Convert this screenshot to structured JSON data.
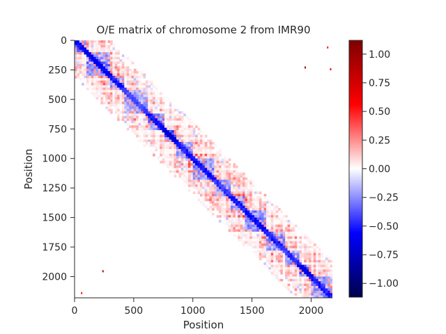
{
  "chart_data": {
    "type": "heatmap",
    "title": "O/E matrix of chromosome 2 from IMR90",
    "xlabel": "Position",
    "ylabel": "Position",
    "xlim": [
      0,
      2180
    ],
    "ylim": [
      2180,
      0
    ],
    "x_ticks": [
      {
        "value": 0,
        "label": "0"
      },
      {
        "value": 500,
        "label": "500"
      },
      {
        "value": 1000,
        "label": "1000"
      },
      {
        "value": 1500,
        "label": "1500"
      },
      {
        "value": 2000,
        "label": "2000"
      }
    ],
    "y_ticks": [
      {
        "value": 0,
        "label": "0"
      },
      {
        "value": 250,
        "label": "250"
      },
      {
        "value": 500,
        "label": "500"
      },
      {
        "value": 750,
        "label": "750"
      },
      {
        "value": 1000,
        "label": "1000"
      },
      {
        "value": 1250,
        "label": "1250"
      },
      {
        "value": 1500,
        "label": "1500"
      },
      {
        "value": 1750,
        "label": "1750"
      },
      {
        "value": 2000,
        "label": "2000"
      }
    ],
    "colorbar": {
      "colormap": "seismic",
      "range": [
        -1.12,
        1.12
      ],
      "ticks": [
        {
          "value": 1.0,
          "label": "1.00"
        },
        {
          "value": 0.75,
          "label": "0.75"
        },
        {
          "value": 0.5,
          "label": "0.50"
        },
        {
          "value": 0.25,
          "label": "0.25"
        },
        {
          "value": 0.0,
          "label": "0.00"
        },
        {
          "value": -0.25,
          "label": "−0.25"
        },
        {
          "value": -0.5,
          "label": "−0.50"
        },
        {
          "value": -0.75,
          "label": "−0.75"
        },
        {
          "value": -1.0,
          "label": "−1.00"
        }
      ]
    },
    "domains": [
      {
        "start": 0,
        "end": 110,
        "strength": -0.55
      },
      {
        "start": 110,
        "end": 300,
        "strength": -0.6
      },
      {
        "start": 300,
        "end": 420,
        "strength": -0.5
      },
      {
        "start": 420,
        "end": 620,
        "strength": -0.4
      },
      {
        "start": 620,
        "end": 760,
        "strength": -0.55
      },
      {
        "start": 760,
        "end": 870,
        "strength": -0.7
      },
      {
        "start": 870,
        "end": 1000,
        "strength": -0.5
      },
      {
        "start": 1000,
        "end": 1180,
        "strength": -0.55
      },
      {
        "start": 1180,
        "end": 1320,
        "strength": -0.45
      },
      {
        "start": 1320,
        "end": 1450,
        "strength": -0.5
      },
      {
        "start": 1450,
        "end": 1620,
        "strength": -0.55
      },
      {
        "start": 1620,
        "end": 1780,
        "strength": -0.5
      },
      {
        "start": 1780,
        "end": 1900,
        "strength": -0.45
      },
      {
        "start": 1900,
        "end": 2000,
        "strength": -0.65
      },
      {
        "start": 2000,
        "end": 2180,
        "strength": -0.5
      }
    ],
    "band_width": 300,
    "off_diagonal_value_range": [
      0.05,
      0.45
    ],
    "sparse_points": [
      {
        "x": 1950,
        "y": 230,
        "value": 0.9
      },
      {
        "x": 2165,
        "y": 245,
        "value": 0.6
      },
      {
        "x": 2140,
        "y": 60,
        "value": 0.5
      },
      {
        "x": 240,
        "y": 1955,
        "value": 0.85
      },
      {
        "x": 60,
        "y": 2140,
        "value": 0.5
      }
    ]
  }
}
